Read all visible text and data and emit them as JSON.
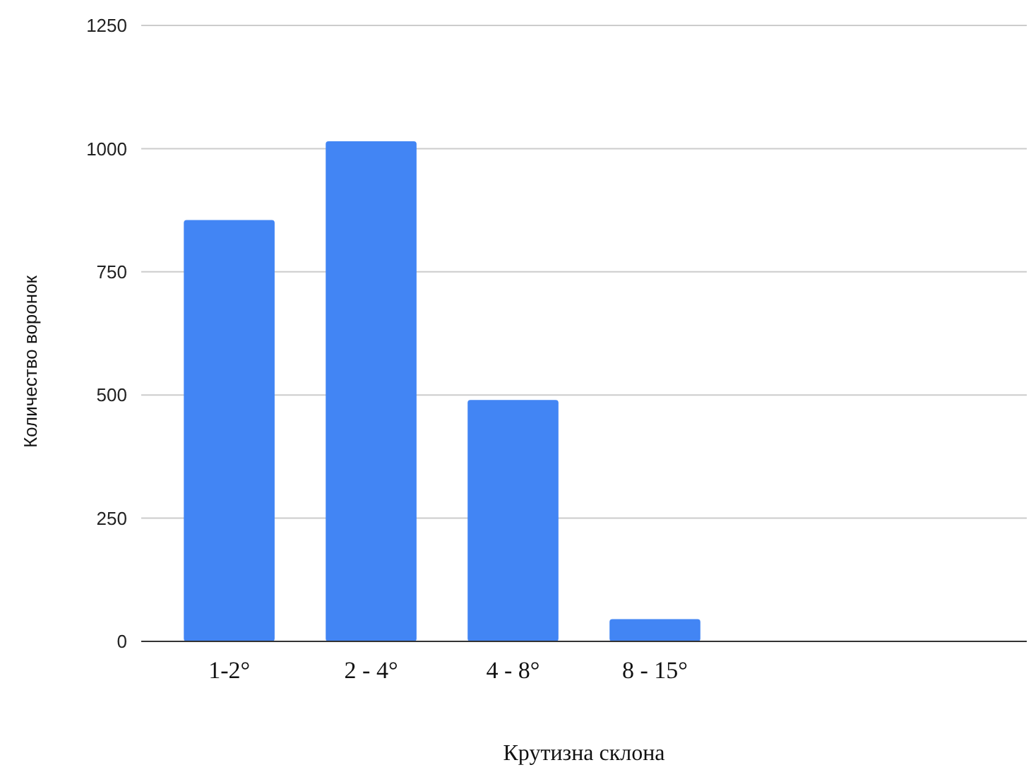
{
  "chart_data": {
    "type": "bar",
    "xlabel": "Крутизна склона",
    "ylabel": "Количество воронок",
    "categories": [
      "1-2°",
      "2 - 4°",
      "4 - 8°",
      "8 - 15°",
      null,
      null
    ],
    "series": [
      {
        "color": "#4285f4",
        "values": [
          855,
          1015,
          490,
          45,
          null,
          null
        ]
      }
    ],
    "ylim": [
      0,
      1250
    ],
    "yticks": [
      0,
      250,
      500,
      750,
      1000,
      1250
    ],
    "grid": "y"
  }
}
